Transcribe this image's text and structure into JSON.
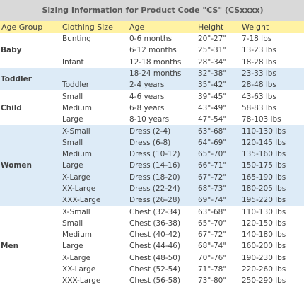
{
  "title": "Sizing Information for Product Code \"CS\" (CSxxxx)",
  "header": [
    "Age Group",
    "Clothing Size",
    "Age",
    "Height",
    "Weight"
  ],
  "groups": [
    {
      "name": "Baby",
      "rows": [
        [
          "Bunting",
          "0-6 months",
          "20\"-27\"",
          "7-18 lbs"
        ],
        [
          null,
          "6-12 months",
          "25\"-31\"",
          "13-23 lbs"
        ],
        [
          "Infant",
          "12-18 months",
          "28\"-34\"",
          "18-28 lbs"
        ]
      ]
    },
    {
      "name": "Toddler",
      "rows": [
        [
          null,
          "18-24 months",
          "32\"-38\"",
          "23-33 lbs"
        ],
        [
          "Toddler",
          "2-4 years",
          "35\"-42\"",
          "28-48 lbs"
        ]
      ]
    },
    {
      "name": "Child",
      "rows": [
        [
          "Small",
          "4-6 years",
          "39\"-45\"",
          "43-63 lbs"
        ],
        [
          "Medium",
          "6-8 years",
          "43\"-49\"",
          "58-83 lbs"
        ],
        [
          "Large",
          "8-10 years",
          "47\"-54\"",
          "78-103 lbs"
        ]
      ]
    },
    {
      "name": "Women",
      "rows": [
        [
          "X-Small",
          "Dress (2-4)",
          "63\"-68\"",
          "110-130 lbs"
        ],
        [
          "Small",
          "Dress (6-8)",
          "64\"-69\"",
          "120-145 lbs"
        ],
        [
          "Medium",
          "Dress (10-12)",
          "65\"-70\"",
          "135-160 lbs"
        ],
        [
          "Large",
          "Dress (14-16)",
          "66\"-71\"",
          "150-175 lbs"
        ],
        [
          "X-Large",
          "Dress (18-20)",
          "67\"-72\"",
          "165-190 lbs"
        ],
        [
          "XX-Large",
          "Dress (22-24)",
          "68\"-73\"",
          "180-205 lbs"
        ],
        [
          "XXX-Large",
          "Dress (26-28)",
          "69\"-74\"",
          "195-220 lbs"
        ]
      ]
    },
    {
      "name": "Men",
      "rows": [
        [
          "X-Small",
          "Chest (32-34)",
          "63\"-68\"",
          "110-130 lbs"
        ],
        [
          "Small",
          "Chest (36-38)",
          "65\"-70\"",
          "120-150 lbs"
        ],
        [
          "Medium",
          "Chest (40-42)",
          "67\"-72\"",
          "140-180 lbs"
        ],
        [
          "Large",
          "Chest (44-46)",
          "68\"-74\"",
          "160-200 lbs"
        ],
        [
          "X-Large",
          "Chest (48-50)",
          "70\"-76\"",
          "190-230 lbs"
        ],
        [
          "XX-Large",
          "Chest (52-54)",
          "71\"-78\"",
          "220-260 lbs"
        ],
        [
          "XXX-Large",
          "Chest (56-58)",
          "73\"-80\"",
          "250-290 lbs"
        ]
      ]
    }
  ]
}
